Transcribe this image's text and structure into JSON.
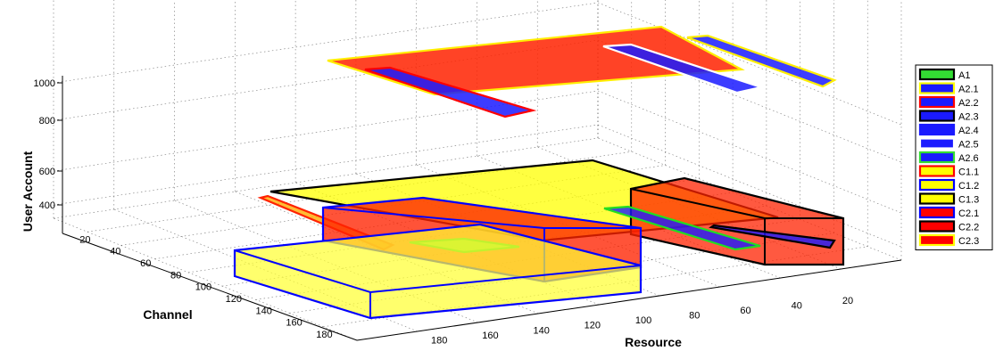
{
  "chart_data": {
    "type": "3d-box",
    "title": "",
    "axes": {
      "x": {
        "label": "Resource",
        "ticks": [
          "20",
          "40",
          "60",
          "80",
          "100",
          "120",
          "140",
          "160",
          "180"
        ]
      },
      "y": {
        "label": "Channel",
        "ticks": [
          "20",
          "40",
          "60",
          "80",
          "100",
          "120",
          "140",
          "160",
          "180"
        ]
      },
      "z": {
        "label": "User Account",
        "ticks": [
          "400",
          "600",
          "800",
          "1000"
        ]
      }
    },
    "grid": true,
    "legend_position": "right",
    "legend": [
      {
        "name": "A1",
        "fill": "#33dd33",
        "edge": "#000000"
      },
      {
        "name": "A2.1",
        "fill": "#1a1aff",
        "edge": "#ffff00"
      },
      {
        "name": "A2.2",
        "fill": "#1a1aff",
        "edge": "#ff0000"
      },
      {
        "name": "A2.3",
        "fill": "#1a1aff",
        "edge": "#000000"
      },
      {
        "name": "A2.4",
        "fill": "#1a1aff",
        "edge": "#1a1aff"
      },
      {
        "name": "A2.5",
        "fill": "#1a1aff",
        "edge": "#ffffff"
      },
      {
        "name": "A2.6",
        "fill": "#1a1aff",
        "edge": "#33dd33"
      },
      {
        "name": "C1.1",
        "fill": "#ffff00",
        "edge": "#ff0000"
      },
      {
        "name": "C1.2",
        "fill": "#ffff00",
        "edge": "#0000ff"
      },
      {
        "name": "C1.3",
        "fill": "#ffff00",
        "edge": "#000000"
      },
      {
        "name": "C2.1",
        "fill": "#ff0000",
        "edge": "#0000ff"
      },
      {
        "name": "C2.2",
        "fill": "#ff0000",
        "edge": "#000000"
      },
      {
        "name": "C2.3",
        "fill": "#ff0000",
        "edge": "#ffff00"
      }
    ],
    "boxes": [
      {
        "name": "C2.3",
        "fill": "#ff2200",
        "edge": "#ffee00",
        "opacity": 0.85,
        "poly": [
          [
            [
              367,
              68
            ],
            [
              741,
              30
            ],
            [
              831,
              78
            ],
            [
              487,
              106
            ]
          ]
        ]
      },
      {
        "name": "A2.1",
        "fill": "#1a1aff",
        "edge": "#ffee00",
        "opacity": 0.85,
        "poly": [
          [
            [
              770,
              42
            ],
            [
              793,
              40
            ],
            [
              935,
              90
            ],
            [
              922,
              97
            ]
          ]
        ]
      },
      {
        "name": "A2.5",
        "fill": "#1a1aff",
        "edge": "#ffffff",
        "opacity": 0.85,
        "poly": [
          [
            [
              676,
              52
            ],
            [
              707,
              50
            ],
            [
              853,
              98
            ],
            [
              826,
              104
            ]
          ]
        ]
      },
      {
        "name": "A2.2",
        "fill": "#1a1aff",
        "edge": "#ff0000",
        "opacity": 0.85,
        "poly": [
          [
            [
              409,
              78
            ],
            [
              437,
              76
            ],
            [
              597,
              124
            ],
            [
              566,
              131
            ]
          ]
        ]
      },
      {
        "name": "C1.3",
        "fill": "#ffff00",
        "edge": "#000000",
        "opacity": 0.75,
        "poly": [
          [
            [
              303,
              215
            ],
            [
              664,
              180
            ],
            [
              872,
              244
            ],
            [
              607,
              270
            ]
          ]
        ]
      },
      {
        "name": "C1.1",
        "fill": "#ffaa00",
        "edge": "#ff2200",
        "opacity": 0.8,
        "poly": [
          [
            [
              292,
              222
            ],
            [
              300,
              220
            ],
            [
              440,
              275
            ],
            [
              430,
              280
            ]
          ]
        ]
      },
      {
        "name": "C2.2",
        "fill": "#ff2200",
        "edge": "#000000",
        "opacity": 0.75,
        "poly": [
          [
            [
              707,
              212
            ],
            [
              767,
              200
            ],
            [
              945,
              245
            ],
            [
              945,
              297
            ],
            [
              857,
              297
            ],
            [
              707,
              263
            ]
          ],
          [
            [
              707,
              212
            ],
            [
              857,
              245
            ],
            [
              945,
              245
            ]
          ],
          [
            [
              857,
              245
            ],
            [
              857,
              297
            ]
          ]
        ]
      },
      {
        "name": "A2.6",
        "fill": "#1a1aff",
        "edge": "#22dd22",
        "opacity": 0.8,
        "poly": [
          [
            [
              677,
              234
            ],
            [
              704,
              232
            ],
            [
              852,
              276
            ],
            [
              824,
              280
            ]
          ]
        ]
      },
      {
        "name": "A2.3",
        "fill": "#1a1aff",
        "edge": "#000000",
        "opacity": 0.8,
        "poly": [
          [
            [
              797,
              255
            ],
            [
              800,
              253
            ],
            [
              935,
              270
            ],
            [
              930,
              278
            ]
          ]
        ]
      },
      {
        "name": "C2.1",
        "fill": "#ff2200",
        "edge": "#0000ff",
        "opacity": 0.78,
        "poly": [
          [
            [
              362,
              233
            ],
            [
              474,
              222
            ],
            [
              718,
              256
            ],
            [
              718,
              300
            ],
            [
              610,
              316
            ],
            [
              362,
              270
            ]
          ],
          [
            [
              362,
              233
            ],
            [
              610,
              256
            ],
            [
              718,
              256
            ]
          ],
          [
            [
              610,
              256
            ],
            [
              610,
              316
            ]
          ]
        ]
      },
      {
        "name": "A1",
        "fill": "#66ee33",
        "edge": "#22cc22",
        "opacity": 0.85,
        "poly": [
          [
            [
              459,
              272
            ],
            [
              520,
              268
            ],
            [
              582,
              277
            ],
            [
              520,
              283
            ]
          ]
        ]
      },
      {
        "name": "C1.2",
        "fill": "#ffff33",
        "edge": "#0000ff",
        "opacity": 0.72,
        "poly": [
          [
            [
              263,
              281
            ],
            [
              538,
              252
            ],
            [
              718,
              298
            ],
            [
              718,
              328
            ],
            [
              415,
              357
            ],
            [
              263,
              310
            ]
          ],
          [
            [
              263,
              281
            ],
            [
              415,
              328
            ],
            [
              718,
              298
            ]
          ],
          [
            [
              415,
              328
            ],
            [
              415,
              357
            ]
          ]
        ]
      }
    ]
  }
}
